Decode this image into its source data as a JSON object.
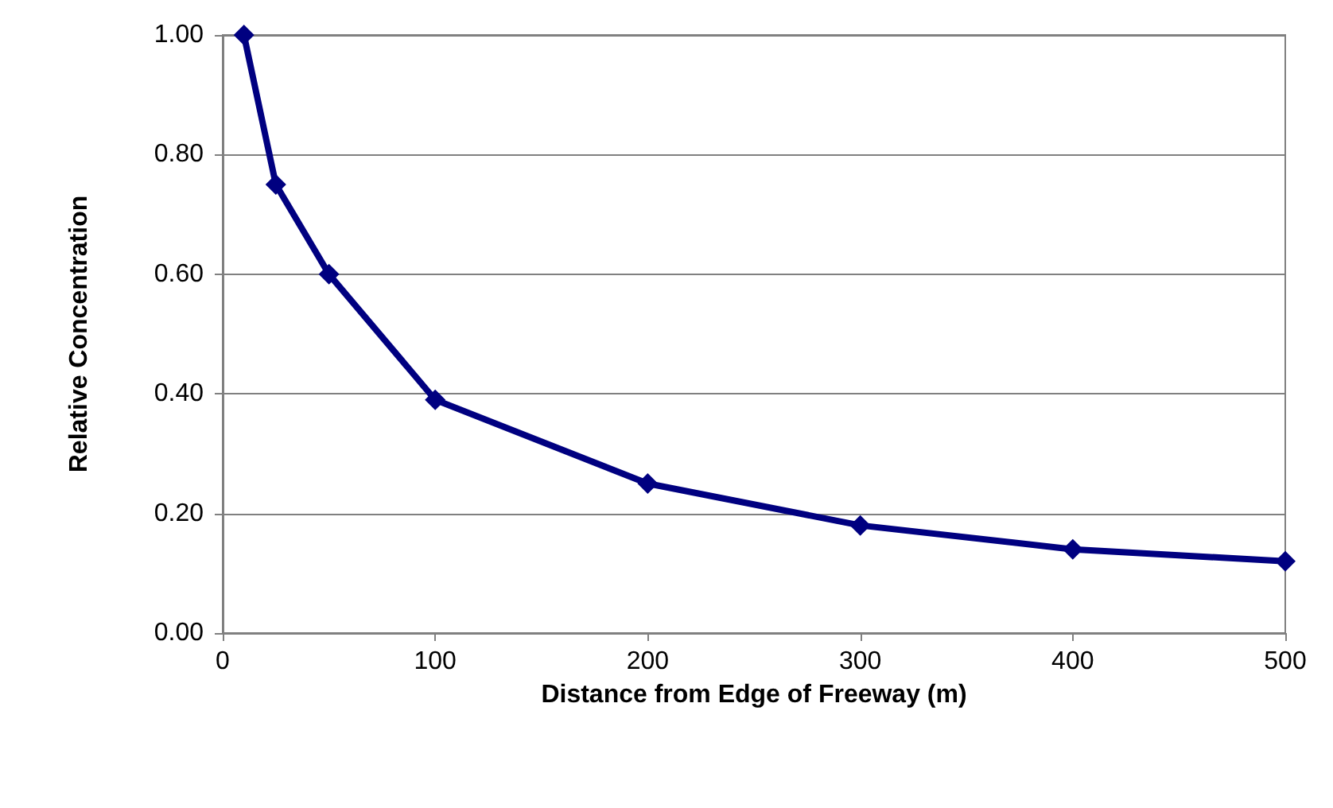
{
  "chart_data": {
    "type": "line",
    "xlabel": "Distance from Edge of Freeway (m)",
    "ylabel": "Relative Concentration",
    "x": [
      10,
      25,
      50,
      100,
      200,
      300,
      400,
      500
    ],
    "series": [
      {
        "color": "#000080",
        "values": [
          1.0,
          0.75,
          0.6,
          0.39,
          0.25,
          0.18,
          0.14,
          0.12
        ]
      }
    ],
    "xlim": [
      0,
      500
    ],
    "xticks": [
      0,
      100,
      200,
      300,
      400,
      500
    ],
    "ylim": [
      0,
      1
    ],
    "yticks": [
      {
        "value": 0,
        "label": "0.00"
      },
      {
        "value": 0.2,
        "label": "0.20"
      },
      {
        "value": 0.4,
        "label": "0.40"
      },
      {
        "value": 0.6,
        "label": "0.60"
      },
      {
        "value": 0.8,
        "label": "0.80"
      },
      {
        "value": 1,
        "label": "1.00"
      }
    ],
    "grid": "y",
    "marker": "diamond",
    "line_style": "solid"
  }
}
